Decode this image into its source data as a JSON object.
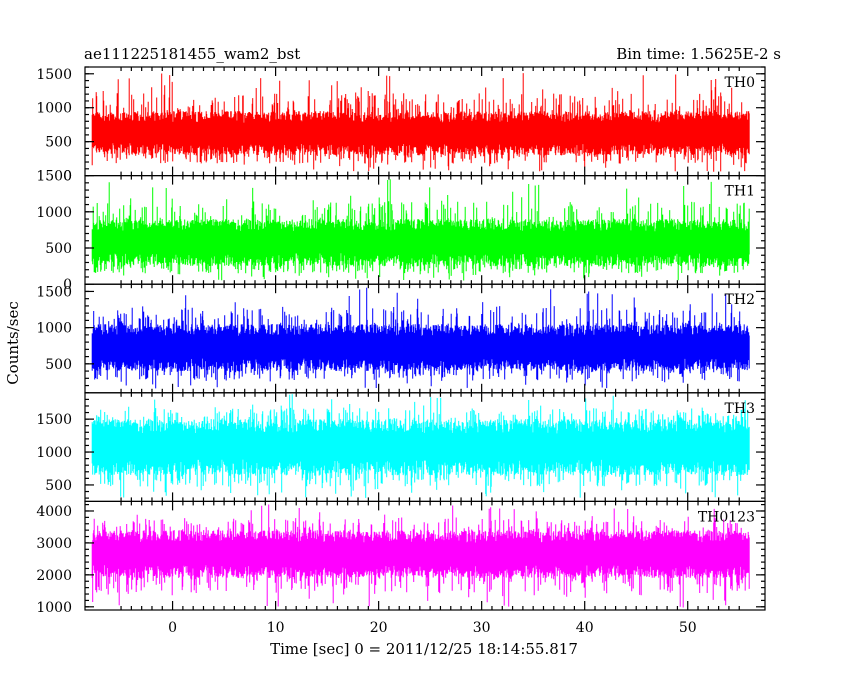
{
  "chart_data": {
    "type": "line",
    "title_left": "ae111225181455_wam2_bst",
    "title_right": "Bin time: 1.5625E-2 s",
    "xlabel": "Time [sec] 0 = 2011/12/25 18:14:55.817",
    "ylabel": "Counts/sec",
    "xlim": [
      -8.5,
      57.5
    ],
    "x_data_range": [
      -7.8,
      56.0
    ],
    "x_ticks": [
      0,
      10,
      20,
      30,
      40,
      50
    ],
    "grid": false,
    "panels": [
      {
        "name": "TH0",
        "color": "#ff0000",
        "ylim": [
          0,
          1600
        ],
        "y_ticks": [
          500,
          1000,
          1500
        ],
        "y_tick_labels": [
          "500",
          "1000",
          "1500"
        ],
        "y_min_label": "0",
        "baseline": 600,
        "typical_low": 300,
        "typical_high": 950,
        "spike_max": 1550,
        "dip_min": 50
      },
      {
        "name": "TH1",
        "color": "#00ff00",
        "ylim": [
          0,
          1500
        ],
        "y_ticks": [
          0,
          500,
          1000,
          1500
        ],
        "y_tick_labels": [
          "0",
          "500",
          "1000",
          "1500"
        ],
        "baseline": 550,
        "typical_low": 250,
        "typical_high": 900,
        "spike_max": 1450,
        "dip_min": 50
      },
      {
        "name": "TH2",
        "color": "#0000ff",
        "ylim": [
          100,
          1600
        ],
        "y_ticks": [
          500,
          1000,
          1500
        ],
        "y_tick_labels": [
          "500",
          "1000",
          "1500"
        ],
        "baseline": 700,
        "typical_low": 400,
        "typical_high": 1050,
        "spike_max": 1580,
        "dip_min": 150
      },
      {
        "name": "TH3",
        "color": "#00ffff",
        "ylim": [
          250,
          1900
        ],
        "y_ticks": [
          500,
          1000,
          1500
        ],
        "y_tick_labels": [
          "500",
          "1000",
          "1500"
        ],
        "baseline": 1050,
        "typical_low": 650,
        "typical_high": 1500,
        "spike_max": 1880,
        "dip_min": 300
      },
      {
        "name": "TH0123",
        "color": "#ff00ff",
        "ylim": [
          900,
          4300
        ],
        "y_ticks": [
          1000,
          2000,
          3000,
          4000
        ],
        "y_tick_labels": [
          "1000",
          "2000",
          "3000",
          "4000"
        ],
        "baseline": 2600,
        "typical_low": 1900,
        "typical_high": 3400,
        "spike_max": 4250,
        "dip_min": 950
      }
    ]
  }
}
